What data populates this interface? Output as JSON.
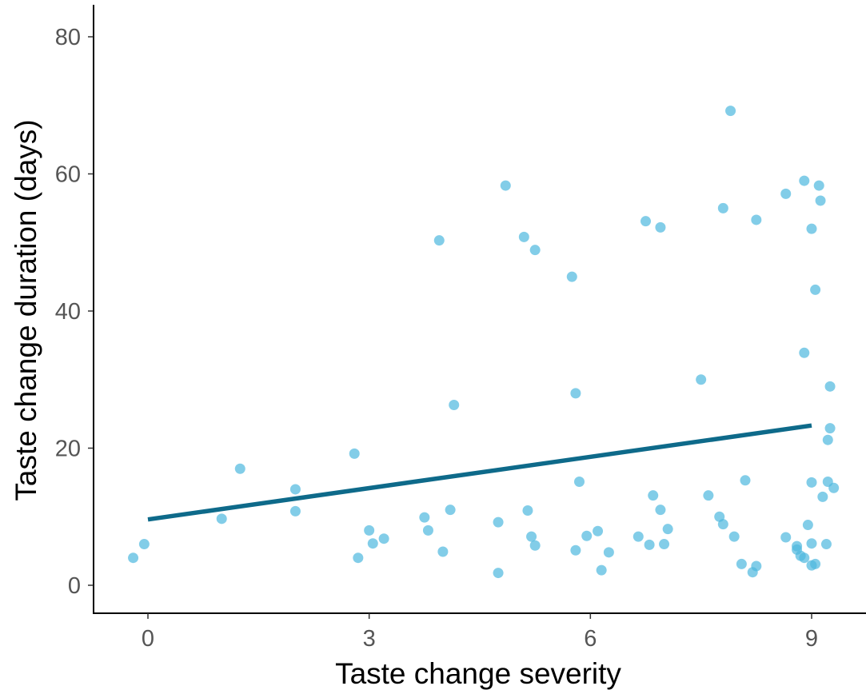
{
  "chart_data": {
    "type": "scatter",
    "xlabel": "Taste change severity",
    "ylabel": "Taste change duration (days)",
    "xlim": [
      -0.35,
      9.3
    ],
    "ylim": [
      -4,
      84
    ],
    "x_ticks": [
      {
        "value": 0,
        "label": "0"
      },
      {
        "value": 3,
        "label": "3"
      },
      {
        "value": 6,
        "label": "6"
      },
      {
        "value": 9,
        "label": "9"
      }
    ],
    "y_ticks": [
      {
        "value": 0,
        "label": "0"
      },
      {
        "value": 20,
        "label": "20"
      },
      {
        "value": 40,
        "label": "40"
      },
      {
        "value": 60,
        "label": "60"
      },
      {
        "value": 80,
        "label": "80"
      }
    ],
    "grid": false,
    "point_color": "#4DB8DE",
    "line_color": "#0E6A8A",
    "trend_line": {
      "x": [
        0,
        9
      ],
      "y": [
        9.6,
        23.3
      ]
    },
    "points": [
      {
        "x": -0.2,
        "y": 4
      },
      {
        "x": -0.05,
        "y": 6
      },
      {
        "x": 1.0,
        "y": 9.7
      },
      {
        "x": 1.25,
        "y": 17
      },
      {
        "x": 2.0,
        "y": 14
      },
      {
        "x": 2.0,
        "y": 10.8
      },
      {
        "x": 2.8,
        "y": 19.2
      },
      {
        "x": 2.85,
        "y": 4
      },
      {
        "x": 3.0,
        "y": 8
      },
      {
        "x": 3.05,
        "y": 6.1
      },
      {
        "x": 3.2,
        "y": 6.8
      },
      {
        "x": 3.75,
        "y": 9.9
      },
      {
        "x": 3.8,
        "y": 8
      },
      {
        "x": 3.95,
        "y": 50.3
      },
      {
        "x": 4.0,
        "y": 4.9
      },
      {
        "x": 4.1,
        "y": 11
      },
      {
        "x": 4.15,
        "y": 26.3
      },
      {
        "x": 4.75,
        "y": 9.2
      },
      {
        "x": 4.75,
        "y": 1.8
      },
      {
        "x": 4.85,
        "y": 58.3
      },
      {
        "x": 5.1,
        "y": 50.8
      },
      {
        "x": 5.15,
        "y": 10.9
      },
      {
        "x": 5.2,
        "y": 7.1
      },
      {
        "x": 5.25,
        "y": 5.8
      },
      {
        "x": 5.25,
        "y": 48.9
      },
      {
        "x": 5.75,
        "y": 45
      },
      {
        "x": 5.8,
        "y": 28
      },
      {
        "x": 5.8,
        "y": 5.1
      },
      {
        "x": 5.85,
        "y": 15.1
      },
      {
        "x": 5.95,
        "y": 7.2
      },
      {
        "x": 6.1,
        "y": 7.9
      },
      {
        "x": 6.15,
        "y": 2.2
      },
      {
        "x": 6.25,
        "y": 4.8
      },
      {
        "x": 6.65,
        "y": 7.1
      },
      {
        "x": 6.75,
        "y": 53.1
      },
      {
        "x": 6.8,
        "y": 5.9
      },
      {
        "x": 6.85,
        "y": 13.1
      },
      {
        "x": 6.95,
        "y": 52.2
      },
      {
        "x": 6.95,
        "y": 11
      },
      {
        "x": 7.0,
        "y": 6
      },
      {
        "x": 7.05,
        "y": 8.2
      },
      {
        "x": 7.5,
        "y": 30
      },
      {
        "x": 7.6,
        "y": 13.1
      },
      {
        "x": 7.75,
        "y": 10
      },
      {
        "x": 7.8,
        "y": 55
      },
      {
        "x": 7.8,
        "y": 8.9
      },
      {
        "x": 7.9,
        "y": 69.2
      },
      {
        "x": 7.95,
        "y": 7.1
      },
      {
        "x": 8.05,
        "y": 3.1
      },
      {
        "x": 8.1,
        "y": 15.3
      },
      {
        "x": 8.2,
        "y": 1.9
      },
      {
        "x": 8.25,
        "y": 53.3
      },
      {
        "x": 8.25,
        "y": 2.8
      },
      {
        "x": 8.65,
        "y": 57.1
      },
      {
        "x": 8.65,
        "y": 7
      },
      {
        "x": 8.8,
        "y": 5.7
      },
      {
        "x": 8.8,
        "y": 5.2
      },
      {
        "x": 8.85,
        "y": 4.3
      },
      {
        "x": 8.9,
        "y": 59
      },
      {
        "x": 8.9,
        "y": 33.9
      },
      {
        "x": 8.9,
        "y": 4
      },
      {
        "x": 8.95,
        "y": 8.8
      },
      {
        "x": 9.0,
        "y": 6.1
      },
      {
        "x": 9.0,
        "y": 2.9
      },
      {
        "x": 9.0,
        "y": 52
      },
      {
        "x": 9.0,
        "y": 15
      },
      {
        "x": 9.05,
        "y": 3.1
      },
      {
        "x": 9.05,
        "y": 43.1
      },
      {
        "x": 9.1,
        "y": 58.3
      },
      {
        "x": 9.12,
        "y": 56.1
      },
      {
        "x": 9.15,
        "y": 12.9
      },
      {
        "x": 9.2,
        "y": 6
      },
      {
        "x": 9.22,
        "y": 21.2
      },
      {
        "x": 9.22,
        "y": 15.1
      },
      {
        "x": 9.25,
        "y": 29
      },
      {
        "x": 9.25,
        "y": 22.9
      },
      {
        "x": 9.3,
        "y": 14.2
      }
    ]
  }
}
